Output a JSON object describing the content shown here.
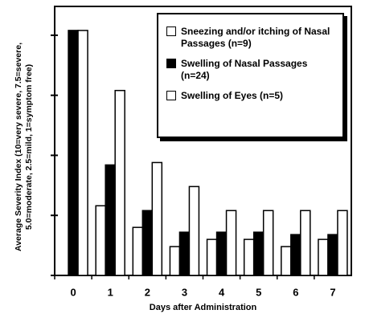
{
  "chart_data": {
    "type": "bar",
    "y_label": "Average Severity Index (10=very severe, 7.5=severe, 5.0=moderate, 2.5=mild, 1=symptom free)",
    "x_label": "Days after Administration",
    "categories": [
      "0",
      "1",
      "2",
      "3",
      "4",
      "5",
      "6",
      "7"
    ],
    "series": [
      {
        "name": "Sneezing and/or itching of Nasal Passages (n=9)",
        "color": "#ffffff",
        "values": [
          null,
          2.9,
          2.0,
          1.2,
          1.5,
          1.5,
          1.2,
          1.5
        ]
      },
      {
        "name": "Swelling of Nasal Passages (n=24)",
        "color": "#000000",
        "values": [
          10.2,
          4.6,
          2.7,
          1.8,
          1.8,
          1.8,
          1.7,
          1.7
        ]
      },
      {
        "name": "Swelling of Eyes (n=5)",
        "color": "#ffffff",
        "values": [
          10.2,
          7.7,
          4.7,
          3.7,
          2.7,
          2.7,
          2.7,
          2.7
        ]
      }
    ],
    "ylim": [
      0,
      11.2
    ],
    "yticks": [
      0,
      2.5,
      5,
      7.5,
      10
    ],
    "legend": "top-right"
  }
}
